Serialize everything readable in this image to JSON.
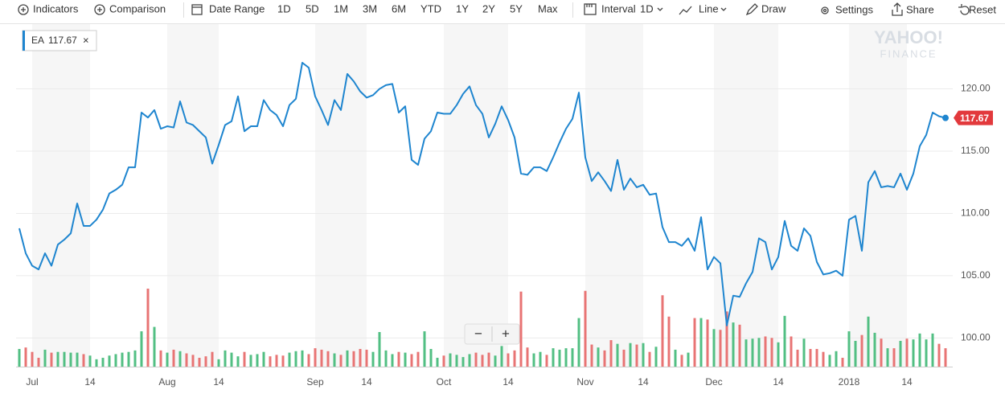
{
  "toolbar": {
    "items": [
      "Indicators",
      "Comparison",
      "Date Range",
      "1D",
      "5D",
      "1M",
      "3M",
      "6M",
      "YTD",
      "1Y",
      "2Y",
      "5Y",
      "Max",
      "Interval",
      "1D",
      "Line",
      "Draw",
      "Settings",
      "Share",
      "Reset"
    ]
  },
  "legend_close": "×",
  "watermark": {
    "line1": "YAHOO!",
    "line2": "FINANCE"
  },
  "zoom": {
    "out": "−",
    "in": "+"
  },
  "chart_data": {
    "type": "line",
    "categories": [
      null,
      null,
      "Jul",
      null,
      null,
      null,
      null,
      null,
      null,
      null,
      null,
      "14",
      null,
      null,
      null,
      null,
      null,
      null,
      null,
      null,
      null,
      null,
      null,
      "Aug",
      null,
      null,
      null,
      null,
      null,
      null,
      null,
      "14",
      null,
      null,
      null,
      null,
      null,
      null,
      null,
      null,
      null,
      null,
      null,
      null,
      null,
      null,
      "Sep",
      null,
      null,
      null,
      null,
      null,
      null,
      null,
      "14",
      null,
      null,
      null,
      null,
      null,
      null,
      null,
      null,
      null,
      null,
      null,
      "Oct",
      null,
      null,
      null,
      null,
      null,
      null,
      null,
      null,
      null,
      "14",
      null,
      null,
      null,
      null,
      null,
      null,
      null,
      null,
      null,
      null,
      null,
      "Nov",
      null,
      null,
      null,
      null,
      null,
      null,
      null,
      null,
      "14",
      null,
      null,
      null,
      null,
      null,
      null,
      null,
      null,
      null,
      null,
      "Dec",
      null,
      null,
      null,
      null,
      null,
      null,
      null,
      null,
      null,
      "14",
      null,
      null,
      null,
      null,
      null,
      null,
      null,
      null,
      null,
      null,
      "2018",
      null,
      null,
      null,
      null,
      null,
      null,
      null,
      null,
      "14",
      null,
      null,
      null,
      null,
      null,
      null
    ],
    "series": [
      {
        "name": "EA",
        "color": "#1e85cf",
        "values": [
          108.8,
          106.8,
          105.8,
          105.5,
          106.8,
          105.8,
          107.5,
          107.9,
          108.4,
          110.8,
          109.0,
          109.0,
          109.5,
          110.3,
          111.6,
          111.9,
          112.3,
          113.7,
          113.7,
          118.1,
          117.7,
          118.3,
          116.8,
          117.0,
          116.9,
          119.0,
          117.3,
          117.1,
          116.6,
          116.1,
          114.0,
          115.5,
          117.1,
          117.4,
          119.4,
          116.6,
          117.0,
          117.0,
          119.1,
          118.3,
          117.9,
          117.0,
          118.7,
          119.2,
          122.1,
          121.7,
          119.4,
          118.3,
          117.1,
          119.1,
          118.3,
          121.2,
          120.6,
          119.8,
          119.3,
          119.5,
          120.0,
          120.3,
          120.4,
          118.1,
          118.6,
          114.3,
          113.9,
          116.0,
          116.6,
          118.1,
          118.0,
          118.0,
          118.7,
          119.6,
          120.2,
          118.7,
          118.0,
          116.1,
          117.2,
          118.6,
          117.5,
          116.1,
          113.2,
          113.1,
          113.7,
          113.7,
          113.4,
          114.5,
          115.7,
          116.8,
          117.6,
          119.7,
          114.5,
          112.6,
          113.3,
          112.6,
          111.8,
          114.3,
          111.9,
          112.8,
          112.1,
          112.3,
          111.5,
          111.6,
          108.9,
          107.7,
          107.7,
          107.4,
          108.0,
          107.0,
          109.7,
          105.5,
          106.5,
          106.0,
          101.0,
          103.4,
          103.3,
          104.4,
          105.3,
          108.0,
          107.7,
          105.5,
          106.5,
          109.4,
          107.4,
          107.0,
          108.8,
          108.2,
          106.1,
          105.1,
          105.2,
          105.4,
          105.0,
          109.5,
          109.8,
          107.0,
          112.5,
          113.4,
          112.1,
          112.2,
          112.1,
          113.2,
          111.9,
          113.2,
          115.4,
          116.3,
          118.1,
          117.8,
          117.67
        ]
      }
    ],
    "volume": {
      "up_color": "#52bf83",
      "down_color": "#e87474",
      "values": [
        2.4,
        2.6,
        2.0,
        1.2,
        2.3,
        1.9,
        2.0,
        2.0,
        1.9,
        1.9,
        1.7,
        1.5,
        1.0,
        1.2,
        1.5,
        1.7,
        1.9,
        2.0,
        2.2,
        4.8,
        10.6,
        5.4,
        2.2,
        1.9,
        2.3,
        2.1,
        1.8,
        1.6,
        1.2,
        1.4,
        2.0,
        1.0,
        2.2,
        1.9,
        1.4,
        2.0,
        1.6,
        1.7,
        2.0,
        1.4,
        1.6,
        1.5,
        1.9,
        2.1,
        2.2,
        1.7,
        2.5,
        2.3,
        2.1,
        1.8,
        1.6,
        2.2,
        2.1,
        2.4,
        2.3,
        2.0,
        4.7,
        2.2,
        1.7,
        2.0,
        1.9,
        1.7,
        2.0,
        4.8,
        2.4,
        1.2,
        1.5,
        1.8,
        1.6,
        1.3,
        1.7,
        1.9,
        1.6,
        1.9,
        1.5,
        2.8,
        1.8,
        2.2,
        10.2,
        2.6,
        1.8,
        2.0,
        1.6,
        2.5,
        2.3,
        2.5,
        2.5,
        6.6,
        10.3,
        3.0,
        2.6,
        2.2,
        3.6,
        3.1,
        2.3,
        3.2,
        3.0,
        3.2,
        2.0,
        2.7,
        9.7,
        6.8,
        2.3,
        1.6,
        1.9,
        6.6,
        6.6,
        6.4,
        5.1,
        5.0,
        7.5,
        6.0,
        5.7,
        3.7,
        3.8,
        3.9,
        4.1,
        3.9,
        3.3,
        6.9,
        4.1,
        2.3,
        3.8,
        2.4,
        2.4,
        2.0,
        1.6,
        2.1,
        1.2,
        4.8,
        3.5,
        4.3,
        6.8,
        4.6,
        3.8,
        2.5,
        2.5,
        3.5,
        3.8,
        3.7,
        4.5,
        3.7,
        4.5,
        3.1,
        2.5
      ]
    },
    "ylim": [
      97.7,
      125.2
    ],
    "yticks": [
      {
        "value": 100,
        "label": "100.00"
      },
      {
        "value": 105,
        "label": "105.00"
      },
      {
        "value": 110,
        "label": "110.00"
      },
      {
        "value": 115,
        "label": "115.00"
      },
      {
        "value": 120,
        "label": "120.00"
      }
    ],
    "grid": true,
    "tag_color": "#e2393c"
  }
}
